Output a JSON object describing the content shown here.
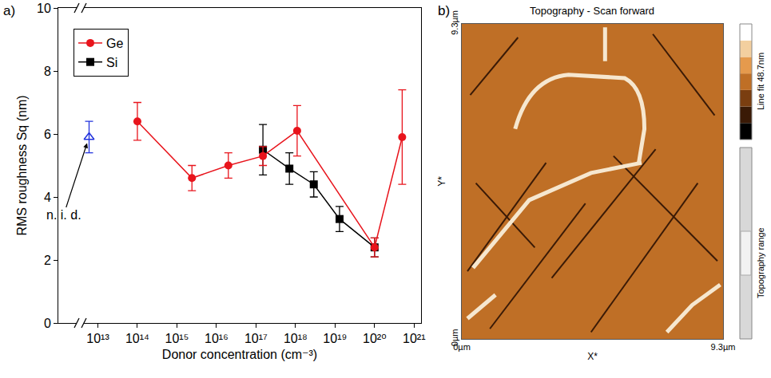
{
  "chart_data": [
    {
      "type": "scatter",
      "panel_label": "a)",
      "x_label": "Donor concentration (cm⁻³)",
      "y_label": "RMS roughness Sq (nm)",
      "log": "x",
      "xlim": [
        1000000000000.0,
        1.5e+21
      ],
      "ylim": [
        0,
        10
      ],
      "xticks": [
        {
          "value": 10000000000000.0,
          "label": "10¹³"
        },
        {
          "value": 100000000000000.0,
          "label": "10¹⁴"
        },
        {
          "value": 1000000000000000.0,
          "label": "10¹⁵"
        },
        {
          "value": 1e+16,
          "label": "10¹⁶"
        },
        {
          "value": 1e+17,
          "label": "10¹⁷"
        },
        {
          "value": 1e+18,
          "label": "10¹⁸"
        },
        {
          "value": 1e+19,
          "label": "10¹⁹"
        },
        {
          "value": 1e+20,
          "label": "10²⁰"
        },
        {
          "value": 1e+21,
          "label": "10²¹"
        }
      ],
      "yticks": [
        0,
        2,
        4,
        6,
        8,
        10
      ],
      "grid": false,
      "legend": "upper left",
      "series": [
        {
          "name": "Ge",
          "color": "#e8141c",
          "marker": "circle",
          "line_style": "solid",
          "x": [
            100000000000000.0,
            2400000000000000.0,
            2e+16,
            1.5e+17,
            1.1e+18,
            1e+20,
            5e+20
          ],
          "values": [
            6.4,
            4.6,
            5.0,
            5.3,
            6.1,
            2.4,
            5.9
          ],
          "errors": [
            0.6,
            0.4,
            0.4,
            0.3,
            0.8,
            0.3,
            1.5
          ]
        },
        {
          "name": "Si",
          "color": "#000000",
          "marker": "square",
          "line_style": "solid",
          "x": [
            1.5e+17,
            7e+17,
            2.9e+18,
            1.3e+19,
            1e+20
          ],
          "values": [
            5.5,
            4.9,
            4.4,
            3.3,
            2.4
          ],
          "errors": [
            0.8,
            0.5,
            0.4,
            0.4,
            0.3
          ]
        },
        {
          "annotation": "n. i. d.",
          "color": "#2233dd",
          "marker": "open triangle",
          "x": [
            6000000000000.0
          ],
          "values": [
            5.9
          ],
          "errors": [
            0.5
          ]
        }
      ]
    },
    {
      "type": "image",
      "panel_label": "b)",
      "title": "Topography - Scan forward",
      "x_label": "X*",
      "y_label": "Y*",
      "xlim": [
        0,
        9.3
      ],
      "ylim": [
        0,
        9.3
      ],
      "xticks": [
        {
          "value": 0,
          "label": "0µm"
        },
        {
          "value": 9.3,
          "label": "9.3µm"
        }
      ],
      "yticks": [
        {
          "value": 0,
          "label": "0µm"
        },
        {
          "value": 9.3,
          "label": "9.3µm"
        }
      ],
      "colorbar": {
        "label": "Line fit 48.7nm",
        "range_label": "Topography range"
      }
    }
  ]
}
